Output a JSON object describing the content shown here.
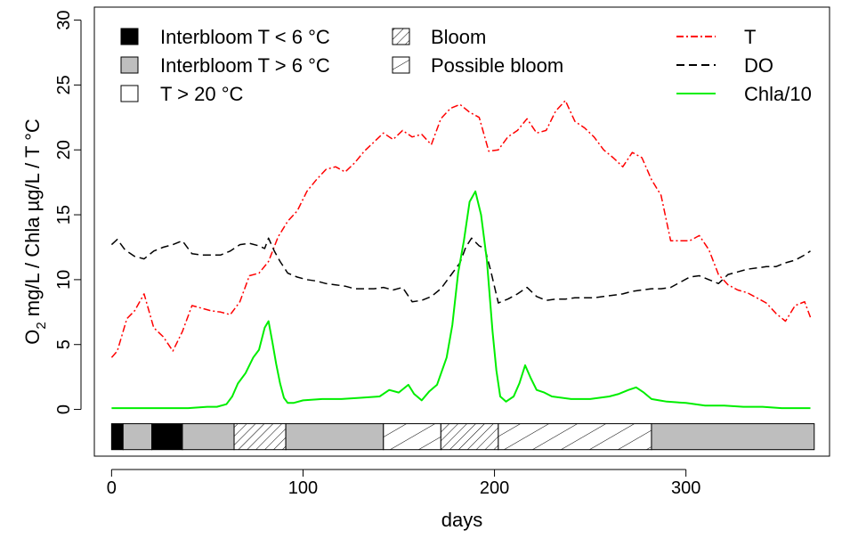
{
  "chart_data": {
    "type": "line",
    "xlabel": "days",
    "ylabel": {
      "o": "O",
      "sub": "2",
      "rest": " mg/L / Chla  µg/L / T °C"
    },
    "xlim": [
      -9,
      375
    ],
    "ylim": [
      -3.6,
      31
    ],
    "x_ticks": [
      "0",
      "100",
      "200",
      "300"
    ],
    "x_tick_values": [
      0,
      100,
      200,
      300
    ],
    "y_ticks": [
      "0",
      "5",
      "10",
      "15",
      "20",
      "25",
      "30"
    ],
    "y_tick_values": [
      0,
      5,
      10,
      15,
      20,
      25,
      30
    ],
    "grid": false,
    "legend_left": [
      {
        "label": "Interbloom T < 6 °C",
        "fill": "black"
      },
      {
        "label": "Interbloom T > 6 °C",
        "fill": "gray"
      },
      {
        "label": "T > 20 °C",
        "fill": "white"
      }
    ],
    "legend_middle": [
      {
        "label": "Bloom",
        "fill": "hatch-dense"
      },
      {
        "label": "Possible bloom",
        "fill": "hatch-sparse"
      }
    ],
    "legend_right": [
      {
        "label": "T",
        "color": "#ff0000",
        "dash": "8,3,2,3"
      },
      {
        "label": "DO",
        "color": "#000000",
        "dash": "9,5"
      },
      {
        "label": "Chla/10",
        "color": "#00ee00",
        "dash": ""
      }
    ],
    "colors": {
      "T": "#ff0000",
      "DO": "#000000",
      "Chla": "#00ee00",
      "gray": "#bebebe",
      "black": "#000000"
    },
    "period_bar": [
      {
        "start": 0,
        "end": 6,
        "fill": "black"
      },
      {
        "start": 6,
        "end": 21,
        "fill": "gray"
      },
      {
        "start": 21,
        "end": 37,
        "fill": "black"
      },
      {
        "start": 37,
        "end": 64,
        "fill": "gray"
      },
      {
        "start": 64,
        "end": 91,
        "fill": "hatch-dense"
      },
      {
        "start": 91,
        "end": 142,
        "fill": "gray"
      },
      {
        "start": 142,
        "end": 172,
        "fill": "hatch-sparse"
      },
      {
        "start": 172,
        "end": 202,
        "fill": "hatch-dense"
      },
      {
        "start": 202,
        "end": 282,
        "fill": "hatch-sparse"
      },
      {
        "start": 282,
        "end": 367,
        "fill": "gray"
      }
    ],
    "series": [
      {
        "name": "T",
        "x": [
          0,
          3,
          8,
          12,
          17,
          22,
          27,
          32,
          37,
          42,
          47,
          52,
          57,
          62,
          67,
          72,
          77,
          82,
          87,
          92,
          97,
          102,
          107,
          112,
          117,
          122,
          127,
          132,
          137,
          142,
          147,
          152,
          157,
          162,
          167,
          172,
          177,
          182,
          187,
          192,
          197,
          202,
          207,
          212,
          217,
          222,
          227,
          232,
          237,
          242,
          247,
          252,
          257,
          262,
          267,
          272,
          277,
          282,
          287,
          292,
          297,
          302,
          307,
          312,
          317,
          322,
          327,
          332,
          337,
          342,
          347,
          352,
          357,
          362,
          365
        ],
        "y": [
          4.0,
          4.5,
          7.0,
          7.6,
          8.9,
          6.3,
          5.6,
          4.5,
          6.0,
          8.0,
          7.8,
          7.6,
          7.5,
          7.3,
          8.3,
          10.3,
          10.5,
          11.4,
          13.3,
          14.5,
          15.3,
          16.8,
          17.7,
          18.5,
          18.7,
          18.3,
          19.0,
          19.9,
          20.6,
          21.3,
          20.8,
          21.5,
          21.0,
          21.2,
          20.4,
          22.4,
          23.2,
          23.5,
          22.9,
          22.5,
          19.9,
          20.0,
          21.0,
          21.5,
          22.4,
          21.3,
          21.5,
          23.0,
          23.8,
          22.2,
          21.7,
          21.0,
          20.0,
          19.4,
          18.7,
          19.8,
          19.4,
          17.7,
          16.5,
          13.0,
          13.0,
          13.0,
          13.4,
          12.3,
          10.4,
          9.6,
          9.2,
          9.0,
          8.6,
          8.2,
          7.4,
          6.8,
          8.0,
          8.3,
          7.1
        ]
      },
      {
        "name": "DO",
        "x": [
          0,
          3,
          7,
          12,
          17,
          22,
          27,
          32,
          37,
          42,
          47,
          52,
          57,
          62,
          67,
          72,
          77,
          80,
          82,
          85,
          88,
          92,
          97,
          102,
          107,
          112,
          117,
          122,
          127,
          132,
          137,
          142,
          147,
          152,
          157,
          162,
          167,
          172,
          177,
          182,
          185,
          188,
          192,
          195,
          198,
          202,
          207,
          212,
          217,
          222,
          227,
          232,
          237,
          242,
          247,
          252,
          257,
          262,
          267,
          272,
          277,
          282,
          287,
          292,
          297,
          302,
          307,
          312,
          317,
          322,
          327,
          332,
          337,
          342,
          347,
          352,
          357,
          362,
          365
        ],
        "y": [
          12.7,
          13.1,
          12.3,
          11.8,
          11.6,
          12.2,
          12.5,
          12.7,
          13.0,
          12.0,
          11.9,
          11.9,
          11.9,
          12.2,
          12.7,
          12.8,
          12.6,
          12.4,
          13.2,
          12.2,
          11.4,
          10.5,
          10.2,
          10.0,
          9.9,
          9.7,
          9.6,
          9.5,
          9.3,
          9.3,
          9.3,
          9.4,
          9.2,
          9.4,
          8.3,
          8.4,
          8.7,
          9.3,
          10.3,
          11.3,
          12.5,
          13.2,
          12.6,
          12.4,
          10.7,
          8.2,
          8.5,
          8.9,
          9.4,
          8.7,
          8.4,
          8.5,
          8.5,
          8.6,
          8.6,
          8.6,
          8.7,
          8.8,
          8.9,
          9.1,
          9.2,
          9.3,
          9.3,
          9.4,
          9.8,
          10.2,
          10.3,
          10.0,
          9.7,
          10.4,
          10.6,
          10.8,
          10.9,
          11.0,
          11.0,
          11.3,
          11.5,
          11.9,
          12.2
        ]
      },
      {
        "name": "Chla/10",
        "x": [
          0,
          10,
          20,
          30,
          40,
          50,
          55,
          60,
          63,
          66,
          70,
          74,
          77,
          80,
          82,
          84,
          86,
          88,
          90,
          92,
          95,
          100,
          110,
          120,
          130,
          140,
          145,
          150,
          155,
          158,
          162,
          166,
          170,
          175,
          178,
          181,
          184,
          187,
          190,
          193,
          196,
          199,
          201,
          203,
          206,
          210,
          213,
          216,
          219,
          222,
          226,
          230,
          240,
          250,
          260,
          265,
          270,
          274,
          278,
          282,
          286,
          290,
          300,
          310,
          320,
          330,
          340,
          350,
          360,
          365
        ],
        "y": [
          0.1,
          0.1,
          0.1,
          0.1,
          0.1,
          0.2,
          0.2,
          0.4,
          1.0,
          2.0,
          2.8,
          4.0,
          4.6,
          6.3,
          6.8,
          5.2,
          3.5,
          2.0,
          0.9,
          0.5,
          0.5,
          0.7,
          0.8,
          0.8,
          0.9,
          1.0,
          1.5,
          1.3,
          1.9,
          1.2,
          0.7,
          1.4,
          1.9,
          4.0,
          6.5,
          10.5,
          13.0,
          16.0,
          16.8,
          15.0,
          11.5,
          6.0,
          3.0,
          1.0,
          0.6,
          1.0,
          2.0,
          3.4,
          2.4,
          1.5,
          1.3,
          1.0,
          0.8,
          0.8,
          1.0,
          1.2,
          1.5,
          1.7,
          1.3,
          0.8,
          0.7,
          0.6,
          0.5,
          0.3,
          0.3,
          0.2,
          0.2,
          0.1,
          0.1,
          0.1
        ]
      }
    ]
  }
}
